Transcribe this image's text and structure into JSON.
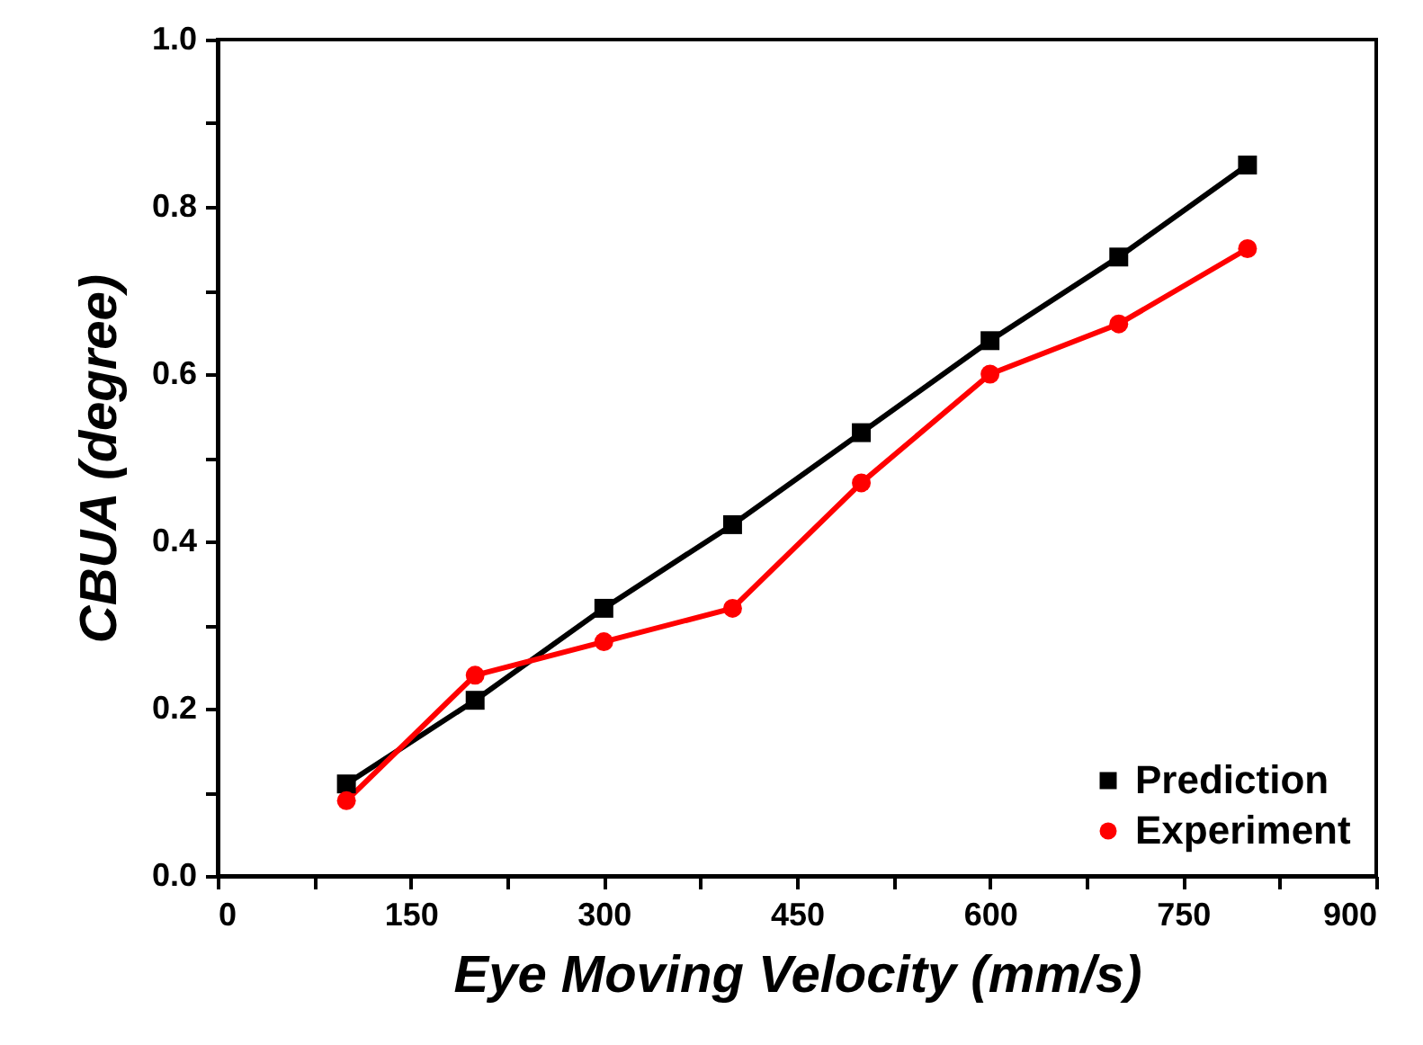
{
  "chart_data": {
    "type": "line",
    "xlabel": "Eye Moving Velocity (mm/s)",
    "ylabel": "CBUA (degree)",
    "x": [
      100,
      200,
      300,
      400,
      500,
      600,
      700,
      800
    ],
    "series": [
      {
        "name": "Prediction",
        "color": "#000000",
        "marker": "square",
        "values": [
          0.11,
          0.21,
          0.32,
          0.42,
          0.53,
          0.64,
          0.74,
          0.85
        ]
      },
      {
        "name": "Experiment",
        "color": "#ff0000",
        "marker": "circle",
        "values": [
          0.09,
          0.24,
          0.28,
          0.32,
          0.47,
          0.6,
          0.66,
          0.75
        ]
      }
    ],
    "xlim": [
      0,
      900
    ],
    "xticks": [
      0,
      {
        "value": 75,
        "label": null
      },
      150,
      {
        "value": 225,
        "label": null
      },
      300,
      {
        "value": 375,
        "label": null
      },
      450,
      {
        "value": 525,
        "label": null
      },
      600,
      {
        "value": 675,
        "label": null
      },
      750,
      {
        "value": 825,
        "label": null
      },
      900
    ],
    "ylim": [
      0,
      1
    ],
    "yticks": [
      {
        "value": 0,
        "label": "0.0"
      },
      {
        "value": 0.1,
        "label": null
      },
      {
        "value": 0.2,
        "label": "0.2"
      },
      {
        "value": 0.3,
        "label": null
      },
      {
        "value": 0.4,
        "label": "0.4"
      },
      {
        "value": 0.5,
        "label": null
      },
      {
        "value": 0.6,
        "label": "0.6"
      },
      {
        "value": 0.7,
        "label": null
      },
      {
        "value": 0.8,
        "label": "0.8"
      },
      {
        "value": 0.9,
        "label": null
      },
      {
        "value": 1,
        "label": "1.0"
      }
    ],
    "grid": false,
    "legend": "bottom right",
    "line_style": "solid"
  }
}
